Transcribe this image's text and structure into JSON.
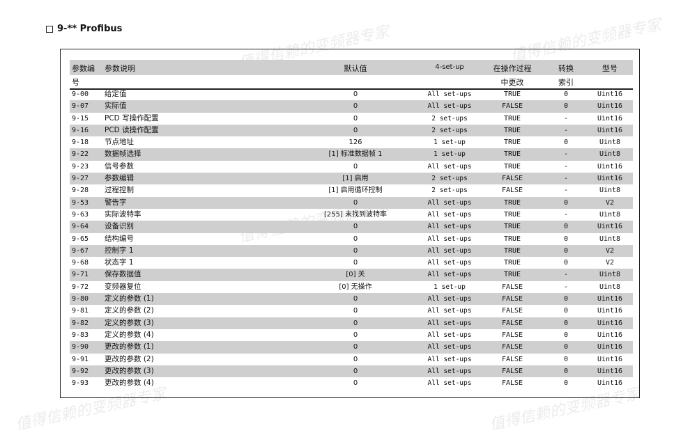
{
  "title": "9-** Profibus",
  "watermark": "值得信赖的变频器专家",
  "header": {
    "id": "参数编号",
    "id_line1": "参数编",
    "id_line2": "号",
    "desc": "参数说明",
    "default": "默认值",
    "setup": "4-set-up",
    "change_line1": "在操作过程",
    "change_line2": "中更改",
    "conv_line1": "转换",
    "conv_line2": "索引",
    "type": "型号"
  },
  "rows": [
    [
      "9-00",
      "给定值",
      "0",
      "All set-ups",
      "TRUE",
      "0",
      "Uint16"
    ],
    [
      "9-07",
      "实际值",
      "0",
      "All set-ups",
      "FALSE",
      "0",
      "Uint16"
    ],
    [
      "9-15",
      "PCD 写操作配置",
      "0",
      "2 set-ups",
      "TRUE",
      "-",
      "Uint16"
    ],
    [
      "9-16",
      "PCD 读操作配置",
      "0",
      "2 set-ups",
      "TRUE",
      "-",
      "Uint16"
    ],
    [
      "9-18",
      "节点地址",
      "126",
      "1 set-up",
      "TRUE",
      "0",
      "Uint8"
    ],
    [
      "9-22",
      "数据帧选择",
      "[1] 标准数据帧 1",
      "1 set-up",
      "TRUE",
      "-",
      "Uint8"
    ],
    [
      "9-23",
      "信号参数",
      "0",
      "All set-ups",
      "TRUE",
      "-",
      "Uint16"
    ],
    [
      "9-27",
      "参数编辑",
      "[1] 启用",
      "2 set-ups",
      "FALSE",
      "-",
      "Uint16"
    ],
    [
      "9-28",
      "过程控制",
      "[1] 启用循环控制",
      "2 set-ups",
      "FALSE",
      "-",
      "Uint8"
    ],
    [
      "9-53",
      "警告字",
      "0",
      "All set-ups",
      "TRUE",
      "0",
      "V2"
    ],
    [
      "9-63",
      "实际波特率",
      "[255] 未找到波特率",
      "All set-ups",
      "TRUE",
      "-",
      "Uint8"
    ],
    [
      "9-64",
      "设备识别",
      "0",
      "All set-ups",
      "TRUE",
      "0",
      "Uint16"
    ],
    [
      "9-65",
      "结构编号",
      "0",
      "All set-ups",
      "TRUE",
      "0",
      "Uint8"
    ],
    [
      "9-67",
      "控制字 1",
      "0",
      "All set-ups",
      "TRUE",
      "0",
      "V2"
    ],
    [
      "9-68",
      "状态字 1",
      "0",
      "All set-ups",
      "TRUE",
      "0",
      "V2"
    ],
    [
      "9-71",
      "保存数据值",
      "[0] 关",
      "All set-ups",
      "TRUE",
      "-",
      "Uint8"
    ],
    [
      "9-72",
      "变频器复位",
      "[0] 无操作",
      "1 set-up",
      "FALSE",
      "-",
      "Uint8"
    ],
    [
      "9-80",
      "定义的参数 (1)",
      "0",
      "All set-ups",
      "FALSE",
      "0",
      "Uint16"
    ],
    [
      "9-81",
      "定义的参数 (2)",
      "0",
      "All set-ups",
      "FALSE",
      "0",
      "Uint16"
    ],
    [
      "9-82",
      "定义的参数 (3)",
      "0",
      "All set-ups",
      "FALSE",
      "0",
      "Uint16"
    ],
    [
      "9-83",
      "定义的参数 (4)",
      "0",
      "All set-ups",
      "FALSE",
      "0",
      "Uint16"
    ],
    [
      "9-90",
      "更改的参数 (1)",
      "0",
      "All set-ups",
      "FALSE",
      "0",
      "Uint16"
    ],
    [
      "9-91",
      "更改的参数 (2)",
      "0",
      "All set-ups",
      "FALSE",
      "0",
      "Uint16"
    ],
    [
      "9-92",
      "更改的参数 (3)",
      "0",
      "All set-ups",
      "FALSE",
      "0",
      "Uint16"
    ],
    [
      "9-93",
      "更改的参数 (4)",
      "0",
      "All set-ups",
      "FALSE",
      "0",
      "Uint16"
    ]
  ]
}
